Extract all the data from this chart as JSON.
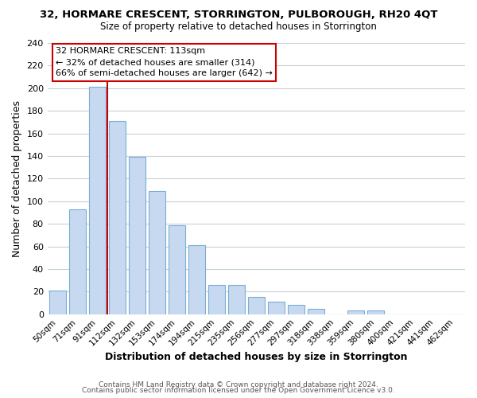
{
  "title_line1": "32, HORMARE CRESCENT, STORRINGTON, PULBOROUGH, RH20 4QT",
  "title_line2": "Size of property relative to detached houses in Storrington",
  "xlabel": "Distribution of detached houses by size in Storrington",
  "ylabel": "Number of detached properties",
  "bar_labels": [
    "50sqm",
    "71sqm",
    "91sqm",
    "112sqm",
    "132sqm",
    "153sqm",
    "174sqm",
    "194sqm",
    "215sqm",
    "235sqm",
    "256sqm",
    "277sqm",
    "297sqm",
    "318sqm",
    "338sqm",
    "359sqm",
    "380sqm",
    "400sqm",
    "421sqm",
    "441sqm",
    "462sqm"
  ],
  "bar_values": [
    21,
    93,
    201,
    171,
    139,
    109,
    79,
    61,
    26,
    26,
    15,
    11,
    8,
    5,
    0,
    3,
    3,
    0,
    0,
    0,
    0
  ],
  "bar_color": "#c6d9f0",
  "bar_edge_color": "#7badd4",
  "grid_color": "#c8d0d8",
  "annotation_title": "32 HORMARE CRESCENT: 113sqm",
  "annotation_line2": "← 32% of detached houses are smaller (314)",
  "annotation_line3": "66% of semi-detached houses are larger (642) →",
  "annotation_box_color": "#ffffff",
  "annotation_box_edge_color": "#cc0000",
  "property_line_color": "#cc0000",
  "ylim": [
    0,
    240
  ],
  "yticks": [
    0,
    20,
    40,
    60,
    80,
    100,
    120,
    140,
    160,
    180,
    200,
    220,
    240
  ],
  "footer_line1": "Contains HM Land Registry data © Crown copyright and database right 2024.",
  "footer_line2": "Contains public sector information licensed under the Open Government Licence v3.0.",
  "background_color": "#ffffff"
}
